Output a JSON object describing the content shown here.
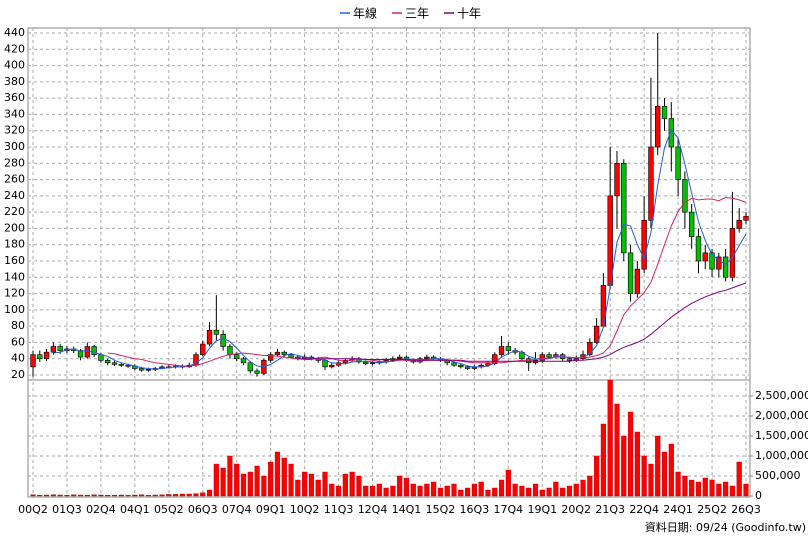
{
  "chart_data": {
    "type": "candlestick",
    "legend_position": "top",
    "grid": true,
    "up_color": "#ff0000",
    "down_color": "#00c000",
    "footer": "資料日期: 09/24  (Goodinfo.tw)",
    "ylim": [
      20,
      440
    ],
    "yticks": [
      20,
      40,
      60,
      80,
      100,
      120,
      140,
      160,
      180,
      200,
      220,
      240,
      260,
      280,
      300,
      320,
      340,
      360,
      380,
      400,
      420,
      440
    ],
    "categories": [
      "00Q2",
      null,
      null,
      null,
      null,
      "01Q3",
      null,
      null,
      null,
      null,
      "02Q4",
      null,
      null,
      null,
      null,
      "04Q1",
      null,
      null,
      null,
      null,
      "05Q2",
      null,
      null,
      null,
      null,
      "06Q3",
      null,
      null,
      null,
      null,
      "07Q4",
      null,
      null,
      null,
      null,
      "09Q1",
      null,
      null,
      null,
      null,
      "10Q2",
      null,
      null,
      null,
      null,
      "11Q3",
      null,
      null,
      null,
      null,
      "12Q4",
      null,
      null,
      null,
      null,
      "14Q1",
      null,
      null,
      null,
      null,
      "15Q2",
      null,
      null,
      null,
      null,
      "16Q3",
      null,
      null,
      null,
      null,
      "17Q4",
      null,
      null,
      null,
      null,
      "19Q1",
      null,
      null,
      null,
      null,
      "20Q2",
      null,
      null,
      null,
      null,
      "21Q3",
      null,
      null,
      null,
      null,
      "22Q4",
      null,
      null,
      null,
      null,
      "24Q1",
      null,
      null,
      null,
      null,
      "25Q2",
      null,
      null,
      null,
      null,
      "26Q3"
    ],
    "open": [
      30,
      45,
      40,
      48,
      55,
      50,
      52,
      50,
      42,
      55,
      45,
      38,
      35,
      33,
      32,
      31,
      28,
      26,
      27,
      28,
      30,
      30,
      31,
      30,
      32,
      45,
      58,
      75,
      70,
      55,
      45,
      40,
      35,
      25,
      22,
      38,
      45,
      48,
      45,
      42,
      40,
      42,
      40,
      38,
      30,
      32,
      35,
      38,
      40,
      36,
      34,
      35,
      36,
      38,
      40,
      42,
      38,
      36,
      40,
      42,
      40,
      38,
      35,
      32,
      30,
      28,
      30,
      32,
      34,
      45,
      55,
      50,
      48,
      40,
      35,
      38,
      45,
      42,
      45,
      40,
      38,
      40,
      45,
      60,
      80,
      130,
      240,
      280,
      170,
      120,
      150,
      210,
      300,
      350,
      335,
      300,
      260,
      220,
      190,
      160,
      170,
      150,
      165,
      140,
      200,
      210
    ],
    "high": [
      50,
      50,
      52,
      60,
      58,
      56,
      55,
      52,
      60,
      57,
      47,
      40,
      37,
      35,
      34,
      33,
      30,
      29,
      30,
      32,
      32,
      33,
      33,
      35,
      48,
      62,
      85,
      118,
      75,
      58,
      48,
      42,
      37,
      28,
      40,
      48,
      52,
      50,
      47,
      44,
      45,
      44,
      42,
      40,
      35,
      37,
      40,
      43,
      42,
      38,
      37,
      38,
      41,
      43,
      45,
      44,
      40,
      42,
      45,
      44,
      42,
      40,
      37,
      34,
      32,
      32,
      34,
      37,
      48,
      68,
      60,
      53,
      50,
      42,
      48,
      48,
      48,
      48,
      47,
      42,
      44,
      50,
      65,
      90,
      145,
      300,
      295,
      285,
      180,
      160,
      240,
      385,
      440,
      360,
      355,
      310,
      270,
      230,
      200,
      180,
      175,
      170,
      175,
      245,
      225,
      220
    ],
    "low": [
      18,
      36,
      37,
      45,
      46,
      47,
      47,
      38,
      40,
      42,
      35,
      32,
      31,
      30,
      29,
      26,
      24,
      24,
      25,
      27,
      28,
      28,
      28,
      29,
      30,
      43,
      55,
      62,
      50,
      40,
      37,
      32,
      22,
      18,
      20,
      35,
      42,
      42,
      40,
      38,
      38,
      38,
      35,
      26,
      28,
      30,
      33,
      36,
      34,
      32,
      32,
      33,
      34,
      36,
      38,
      36,
      34,
      34,
      38,
      38,
      36,
      32,
      30,
      28,
      26,
      26,
      28,
      30,
      32,
      42,
      45,
      45,
      37,
      25,
      33,
      35,
      40,
      40,
      37,
      35,
      36,
      38,
      43,
      58,
      78,
      125,
      200,
      160,
      110,
      115,
      145,
      200,
      290,
      320,
      270,
      240,
      200,
      175,
      145,
      150,
      140,
      140,
      135,
      135,
      195,
      205
    ],
    "close": [
      45,
      40,
      48,
      55,
      50,
      52,
      50,
      42,
      55,
      45,
      38,
      35,
      33,
      32,
      31,
      28,
      26,
      27,
      28,
      30,
      30,
      31,
      30,
      32,
      45,
      58,
      75,
      70,
      55,
      45,
      40,
      35,
      25,
      22,
      38,
      45,
      48,
      45,
      42,
      40,
      42,
      40,
      38,
      30,
      32,
      35,
      38,
      40,
      36,
      34,
      35,
      36,
      38,
      40,
      42,
      38,
      36,
      40,
      42,
      40,
      38,
      35,
      32,
      30,
      28,
      30,
      32,
      34,
      45,
      55,
      50,
      48,
      40,
      35,
      38,
      45,
      42,
      45,
      40,
      38,
      40,
      45,
      60,
      80,
      130,
      240,
      280,
      170,
      120,
      150,
      210,
      300,
      350,
      335,
      300,
      260,
      220,
      190,
      160,
      170,
      150,
      165,
      140,
      200,
      210,
      215
    ],
    "series": [
      {
        "name": "年線",
        "color": "#2060e0",
        "values": [
          null,
          null,
          null,
          47,
          48,
          51,
          52,
          49,
          50,
          48,
          45,
          43,
          38,
          35,
          33,
          31,
          29,
          28,
          27,
          28,
          29,
          30,
          30,
          31,
          35,
          41,
          53,
          62,
          65,
          61,
          53,
          44,
          36,
          31,
          30,
          33,
          38,
          44,
          46,
          44,
          42,
          41,
          40,
          38,
          35,
          34,
          34,
          36,
          37,
          37,
          36,
          35,
          36,
          37,
          39,
          40,
          39,
          39,
          39,
          40,
          40,
          39,
          36,
          34,
          31,
          30,
          30,
          31,
          35,
          42,
          46,
          50,
          48,
          43,
          40,
          40,
          40,
          43,
          43,
          41,
          41,
          41,
          46,
          56,
          79,
          128,
          183,
          205,
          203,
          180,
          163,
          195,
          253,
          299,
          321,
          311,
          279,
          243,
          208,
          185,
          168,
          161,
          156,
          164,
          179,
          193
        ]
      },
      {
        "name": "三年",
        "color": "#e0206a",
        "values": [
          null,
          null,
          null,
          null,
          null,
          null,
          null,
          null,
          null,
          null,
          null,
          47,
          46,
          44,
          42,
          40,
          39,
          37,
          35,
          34,
          33,
          32,
          31,
          31,
          32,
          34,
          37,
          40,
          43,
          45,
          46,
          47,
          46,
          45,
          44,
          44,
          43,
          42,
          41,
          40,
          39,
          39,
          41,
          42,
          40,
          38,
          37,
          38,
          39,
          39,
          38,
          37,
          37,
          37,
          38,
          38,
          37,
          37,
          38,
          38,
          38,
          38,
          38,
          37,
          36,
          35,
          35,
          35,
          35,
          35,
          36,
          37,
          38,
          38,
          39,
          40,
          41,
          42,
          42,
          42,
          41,
          41,
          42,
          44,
          47,
          56,
          74,
          94,
          105,
          113,
          121,
          134,
          156,
          180,
          203,
          221,
          232,
          237,
          235,
          236,
          236,
          234,
          238,
          237,
          235,
          232
        ]
      },
      {
        "name": "十年",
        "color": "#800080",
        "values": [
          null,
          null,
          null,
          null,
          null,
          null,
          null,
          null,
          null,
          null,
          null,
          null,
          null,
          null,
          null,
          null,
          null,
          null,
          null,
          null,
          null,
          null,
          null,
          null,
          null,
          null,
          null,
          null,
          null,
          null,
          null,
          null,
          null,
          null,
          null,
          null,
          null,
          null,
          null,
          40,
          40,
          40,
          40,
          40,
          40,
          40,
          40,
          40,
          40,
          39,
          39,
          39,
          39,
          39,
          39,
          39,
          38,
          38,
          38,
          38,
          38,
          38,
          38,
          38,
          37,
          37,
          37,
          37,
          37,
          37,
          37,
          37,
          37,
          37,
          37,
          37,
          37,
          37,
          37,
          37,
          38,
          38,
          39,
          40,
          42,
          45,
          50,
          54,
          57,
          60,
          64,
          70,
          77,
          84,
          91,
          97,
          103,
          108,
          112,
          116,
          119,
          122,
          124,
          127,
          130,
          133
        ]
      }
    ],
    "volume": {
      "color": "#ff0000",
      "ylim": [
        0,
        2900000
      ],
      "yticks": [
        0,
        {
          "value": 500000,
          "label": "500,000"
        },
        {
          "value": 1000000,
          "label": "1,000,000"
        },
        {
          "value": 1500000,
          "label": "1,500,000"
        },
        {
          "value": 2000000,
          "label": "2,000,000"
        },
        {
          "value": 2500000,
          "label": "2,500,000"
        }
      ],
      "values": [
        30000,
        20000,
        25000,
        30000,
        25000,
        20000,
        30000,
        25000,
        20000,
        30000,
        25000,
        20000,
        20000,
        25000,
        20000,
        25000,
        30000,
        20000,
        25000,
        30000,
        40000,
        40000,
        50000,
        50000,
        60000,
        80000,
        150000,
        800000,
        700000,
        1000000,
        800000,
        550000,
        600000,
        750000,
        500000,
        850000,
        1100000,
        950000,
        800000,
        400000,
        600000,
        550000,
        400000,
        600000,
        300000,
        250000,
        550000,
        600000,
        500000,
        250000,
        250000,
        300000,
        200000,
        250000,
        500000,
        450000,
        300000,
        250000,
        300000,
        350000,
        200000,
        250000,
        300000,
        150000,
        200000,
        300000,
        350000,
        150000,
        200000,
        400000,
        650000,
        300000,
        250000,
        200000,
        300000,
        150000,
        200000,
        350000,
        200000,
        250000,
        300000,
        400000,
        500000,
        1000000,
        1800000,
        2900000,
        2300000,
        1500000,
        2100000,
        1600000,
        1000000,
        800000,
        1500000,
        1100000,
        1300000,
        600000,
        500000,
        400000,
        350000,
        450000,
        400000,
        300000,
        350000,
        250000,
        850000,
        300000
      ]
    }
  }
}
